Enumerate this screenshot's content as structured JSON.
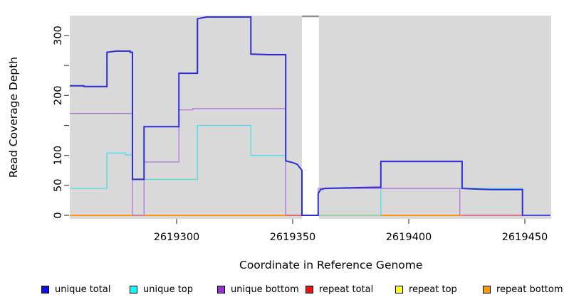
{
  "figure": {
    "x_axis_title": "Coordinate in Reference Genome",
    "y_axis_title": "Read Coverage Depth"
  },
  "legend": {
    "items": [
      {
        "label": "unique total",
        "color": "#0d0df0"
      },
      {
        "label": "unique top",
        "color": "#00ffff"
      },
      {
        "label": "unique bottom",
        "color": "#9933cc"
      },
      {
        "label": "repeat total",
        "color": "#ee1111"
      },
      {
        "label": "repeat top",
        "color": "#ffff22"
      },
      {
        "label": "repeat bottom",
        "color": "#ff9900"
      }
    ]
  },
  "chart_data": {
    "type": "line",
    "title": "",
    "xlabel": "Coordinate in Reference Genome",
    "ylabel": "Read Coverage Depth",
    "x_domain": [
      2619254,
      2619461
    ],
    "y_domain": [
      0,
      333
    ],
    "grid": false,
    "legend_position": "bottom",
    "plot_bg": "#d9d9d9",
    "gap_band": {
      "x_start": 2619354,
      "x_end": 2619361.3,
      "fill": "#ffffff",
      "top_edge_color": "#8f8f8f"
    },
    "x_ticks": [
      {
        "value": 2619300,
        "label": "2619300"
      },
      {
        "value": 2619350,
        "label": "2619350"
      },
      {
        "value": 2619400,
        "label": "2619400"
      },
      {
        "value": 2619450,
        "label": "2619450"
      }
    ],
    "y_ticks": [
      {
        "value": 0,
        "label": "0"
      },
      {
        "value": 50,
        "label": "50"
      },
      {
        "value": 100,
        "label": "100"
      },
      {
        "value": 150,
        "label": ""
      },
      {
        "value": 200,
        "label": "200"
      },
      {
        "value": 250,
        "label": ""
      },
      {
        "value": 300,
        "label": "300"
      }
    ],
    "baseline_segments": [
      {
        "name": "repeat-bottom-baseline-left",
        "layer": "pre",
        "color": "#ff9510",
        "width": 2,
        "points": [
          [
            2619254,
            0
          ],
          [
            2619347,
            0
          ]
        ]
      },
      {
        "name": "repeat-total-baseline-mid",
        "layer": "pre",
        "color": "#e04455",
        "width": 1.5,
        "points": [
          [
            2619347,
            0
          ],
          [
            2619354,
            0
          ]
        ]
      },
      {
        "name": "blended-baseline-green",
        "layer": "pre",
        "color": "#8ccc96",
        "width": 1.5,
        "points": [
          [
            2619361,
            0
          ],
          [
            2619388,
            0
          ]
        ]
      },
      {
        "name": "repeat-bottom-baseline-right",
        "layer": "pre",
        "color": "#ff9510",
        "width": 2,
        "points": [
          [
            2619388,
            0
          ],
          [
            2619423,
            0
          ]
        ]
      },
      {
        "name": "repeat-total-baseline-right",
        "layer": "pre",
        "color": "#dd5580",
        "width": 1.5,
        "points": [
          [
            2619423,
            0
          ],
          [
            2619449,
            0
          ]
        ]
      },
      {
        "name": "blended-baseline-slate",
        "layer": "post",
        "color": "#5d55dd",
        "width": 1.5,
        "points": [
          [
            2619449,
            0
          ],
          [
            2619461,
            0
          ]
        ]
      }
    ],
    "series": [
      {
        "name": "unique top",
        "color": "#49dfe8",
        "width": 1.3,
        "paths": [
          [
            [
              2619254,
              45
            ],
            [
              2619270,
              45
            ],
            [
              2619270,
              104
            ],
            [
              2619278,
              104
            ],
            [
              2619278,
              101
            ],
            [
              2619281,
              101
            ],
            [
              2619281,
              60
            ],
            [
              2619309,
              60
            ],
            [
              2619309,
              150
            ],
            [
              2619332,
              150
            ],
            [
              2619332,
              100
            ],
            [
              2619347,
              100
            ],
            [
              2619347,
              0
            ]
          ],
          [
            [
              2619388,
              0
            ],
            [
              2619388,
              45
            ],
            [
              2619449,
              45
            ],
            [
              2619449,
              0
            ]
          ]
        ]
      },
      {
        "name": "unique bottom",
        "color": "#b173d9",
        "width": 1.3,
        "paths": [
          [
            [
              2619254,
              170
            ],
            [
              2619281,
              170
            ],
            [
              2619281,
              0
            ],
            [
              2619286,
              0
            ],
            [
              2619286,
              89
            ],
            [
              2619301,
              89
            ],
            [
              2619301,
              176
            ],
            [
              2619307,
              176
            ],
            [
              2619307,
              178
            ],
            [
              2619347,
              178
            ],
            [
              2619347,
              0
            ]
          ],
          [
            [
              2619361,
              0
            ],
            [
              2619361,
              45
            ],
            [
              2619422,
              45
            ],
            [
              2619422,
              0
            ]
          ]
        ]
      },
      {
        "name": "unique total",
        "color": "#2d2dd8",
        "width": 2,
        "paths": [
          [
            [
              2619254,
              216
            ],
            [
              2619260,
              216
            ],
            [
              2619260,
              215
            ],
            [
              2619270,
              215
            ],
            [
              2619270,
              272
            ],
            [
              2619274,
              274
            ],
            [
              2619280,
              274
            ],
            [
              2619280,
              272
            ],
            [
              2619281,
              272
            ],
            [
              2619281,
              60
            ],
            [
              2619286,
              60
            ],
            [
              2619286,
              148
            ],
            [
              2619301,
              148
            ],
            [
              2619301,
              237
            ],
            [
              2619309,
              237
            ],
            [
              2619309,
              328
            ],
            [
              2619313,
              331
            ],
            [
              2619332,
              331
            ],
            [
              2619332,
              269
            ],
            [
              2619340,
              268
            ],
            [
              2619347,
              268
            ],
            [
              2619347,
              91
            ],
            [
              2619350,
              88
            ],
            [
              2619352,
              85
            ],
            [
              2619353,
              80
            ],
            [
              2619354,
              75
            ],
            [
              2619354,
              0
            ],
            [
              2619361,
              0
            ],
            [
              2619361,
              36
            ],
            [
              2619362,
              43
            ],
            [
              2619364,
              45
            ],
            [
              2619375,
              46
            ],
            [
              2619388,
              47
            ],
            [
              2619388,
              90
            ],
            [
              2619423,
              90
            ],
            [
              2619423,
              45
            ],
            [
              2619428,
              44
            ],
            [
              2619435,
              43
            ],
            [
              2619449,
              43
            ],
            [
              2619449,
              0
            ],
            [
              2619461,
              0
            ]
          ]
        ]
      },
      {
        "name": "repeat total",
        "color": "#ee1111",
        "paths": [],
        "note_value": 0
      },
      {
        "name": "repeat top",
        "color": "#ffff22",
        "paths": [],
        "note_value": 0
      },
      {
        "name": "repeat bottom",
        "color": "#ff9900",
        "paths": [],
        "note_value": 0
      }
    ]
  }
}
